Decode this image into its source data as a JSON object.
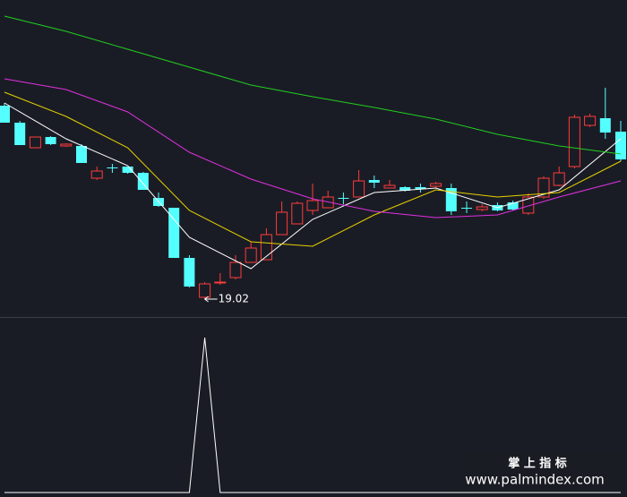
{
  "chart_data": [
    {
      "type": "candlestick",
      "open": [
        23.34,
        22.96,
        22.4,
        22.64,
        22.44,
        22.44,
        21.72,
        21.96,
        21.98,
        21.84,
        21.28,
        21.06,
        19.94,
        19.06,
        19.38,
        19.5,
        19.84,
        19.9,
        20.46,
        20.7,
        21.0,
        21.06,
        21.28,
        21.3,
        21.68,
        21.5,
        21.52,
        21.52,
        21.54,
        21.5,
        21.06,
        21.02,
        21.12,
        21.18,
        20.94,
        21.3,
        21.56,
        21.98,
        22.9,
        23.06,
        22.76
      ],
      "high": [
        23.4,
        23.0,
        22.64,
        22.66,
        22.5,
        22.48,
        21.98,
        22.04,
        21.98,
        21.86,
        21.4,
        21.06,
        20.0,
        19.4,
        19.6,
        20.0,
        20.3,
        20.6,
        21.2,
        21.2,
        21.6,
        21.44,
        21.4,
        21.9,
        21.78,
        21.68,
        21.54,
        21.6,
        21.64,
        21.6,
        21.2,
        21.14,
        21.18,
        21.22,
        21.38,
        21.76,
        21.98,
        23.14,
        23.16,
        23.74,
        23.0
      ],
      "low": [
        22.96,
        22.46,
        22.4,
        22.46,
        22.42,
        22.06,
        21.68,
        21.84,
        21.82,
        21.46,
        21.08,
        19.94,
        19.28,
        19.02,
        19.34,
        19.46,
        19.84,
        19.9,
        20.46,
        20.7,
        20.9,
        21.06,
        21.14,
        21.3,
        21.5,
        21.5,
        21.42,
        21.4,
        21.5,
        20.9,
        20.94,
        20.98,
        20.98,
        21.0,
        20.9,
        21.26,
        21.54,
        21.94,
        22.86,
        22.6,
        22.1
      ],
      "close": [
        22.96,
        22.46,
        22.64,
        22.48,
        22.48,
        22.06,
        21.88,
        21.96,
        21.84,
        21.46,
        21.1,
        19.94,
        19.3,
        19.36,
        19.4,
        19.84,
        20.16,
        20.46,
        20.96,
        21.16,
        21.22,
        21.3,
        21.26,
        21.66,
        21.62,
        21.56,
        21.44,
        21.48,
        21.6,
        20.98,
        21.04,
        21.08,
        21.0,
        21.02,
        21.3,
        21.72,
        21.84,
        23.08,
        23.1,
        22.74,
        22.14
      ],
      "series": [
        {
          "color": "#ffffff",
          "x": [
            0,
            4,
            8,
            12,
            16,
            20,
            24,
            28,
            32,
            36,
            40
          ],
          "values": [
            23.4,
            22.6,
            22.0,
            20.4,
            19.7,
            20.8,
            21.4,
            21.5,
            21.06,
            21.46,
            22.6
          ]
        },
        {
          "color": "#e6d200",
          "x": [
            0,
            4,
            8,
            12,
            16,
            20,
            24,
            28,
            32,
            36,
            40
          ],
          "values": [
            23.64,
            23.1,
            22.4,
            21.0,
            20.3,
            20.2,
            20.9,
            21.46,
            21.3,
            21.4,
            22.1
          ]
        },
        {
          "color": "#e030e0",
          "x": [
            0,
            4,
            8,
            12,
            16,
            20,
            24,
            28,
            32,
            36,
            40
          ],
          "values": [
            23.94,
            23.7,
            23.2,
            22.3,
            21.7,
            21.26,
            20.98,
            20.84,
            20.9,
            21.3,
            21.66
          ]
        },
        {
          "color": "#20d020",
          "x": [
            0,
            4,
            8,
            12,
            16,
            20,
            24,
            28,
            32,
            36,
            40
          ],
          "values": [
            25.34,
            25.0,
            24.6,
            24.2,
            23.8,
            23.54,
            23.3,
            23.04,
            22.7,
            22.44,
            22.26
          ]
        }
      ],
      "low_label": "19.02",
      "up_color": "#ff3b3b",
      "down_color": "#54ffff",
      "ylim": [
        18.6,
        25.7
      ]
    },
    {
      "type": "line",
      "color": "#ffffff",
      "values": [
        0,
        0,
        0,
        0,
        0,
        0,
        0,
        0,
        0,
        0,
        0,
        0,
        0,
        1,
        0,
        0,
        0,
        0,
        0,
        0,
        0,
        0,
        0,
        0,
        0,
        0,
        0,
        0,
        0,
        0,
        0,
        0,
        0,
        0,
        0,
        0,
        0,
        0,
        0,
        0,
        0
      ],
      "ylim": [
        0,
        1
      ]
    }
  ],
  "watermark": {
    "title": "掌 上 指 标",
    "url": "www.palmindex.com"
  }
}
